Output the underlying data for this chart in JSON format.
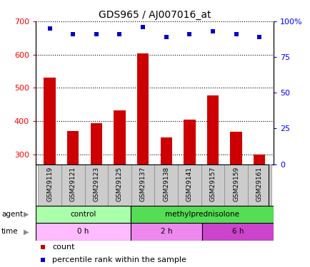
{
  "title": "GDS965 / AJ007016_at",
  "samples": [
    "GSM29119",
    "GSM29121",
    "GSM29123",
    "GSM29125",
    "GSM29137",
    "GSM29138",
    "GSM29141",
    "GSM29157",
    "GSM29159",
    "GSM29161"
  ],
  "counts": [
    530,
    370,
    393,
    433,
    603,
    350,
    405,
    478,
    367,
    300
  ],
  "percentile_ranks": [
    95,
    91,
    91,
    91,
    96,
    89,
    91,
    93,
    91,
    89
  ],
  "ylim_left": [
    270,
    700
  ],
  "ylim_right": [
    0,
    100
  ],
  "yticks_left": [
    300,
    400,
    500,
    600,
    700
  ],
  "yticks_right": [
    0,
    25,
    50,
    75,
    100
  ],
  "bar_color": "#cc0000",
  "dot_color": "#0000cc",
  "agent_groups": [
    {
      "label": "control",
      "start": 0,
      "end": 4,
      "color": "#aaffaa"
    },
    {
      "label": "methylprednisolone",
      "start": 4,
      "end": 10,
      "color": "#55dd55"
    }
  ],
  "time_groups": [
    {
      "label": "0 h",
      "start": 0,
      "end": 4,
      "color": "#ffbbff"
    },
    {
      "label": "2 h",
      "start": 4,
      "end": 7,
      "color": "#ee88ee"
    },
    {
      "label": "6 h",
      "start": 7,
      "end": 10,
      "color": "#cc44cc"
    }
  ],
  "legend_count_label": "count",
  "legend_pct_label": "percentile rank within the sample",
  "bar_bottom": 270,
  "xticklabel_fontsize": 6.5,
  "title_fontsize": 10
}
